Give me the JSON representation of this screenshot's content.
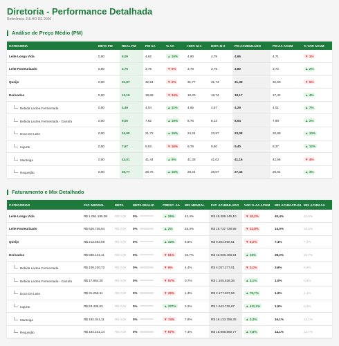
{
  "header": {
    "title": "Diretoria - Performance Detalhada",
    "subtitle": "Referência: JULHO DE 2026"
  },
  "sections": [
    {
      "title": "Análise de Preço Médio (PM)",
      "columns": [
        "CATEGORIA",
        "META PM",
        "REAL PM",
        "PM AA",
        "% AA",
        "HIST. M-1",
        "HIST. M-2",
        "PM ACUMULADO",
        "PM AA ACUM",
        "% VAR ACUM"
      ],
      "trend_columns": [
        4,
        9
      ],
      "rows": [
        {
          "kind": "parent",
          "cells": [
            "Leite Longa Vida",
            "0,00",
            "5,09",
            "4,62",
            "▲ 10%",
            "4,90",
            "4,79",
            "4,66",
            "4,71",
            "▼ 1%"
          ]
        },
        {
          "kind": "parent",
          "cells": [
            "Leite Pasteurizado",
            "0,00",
            "3,76",
            "3,79",
            "▼ 0%",
            "3,79",
            "3,79",
            "3,80",
            "3,72",
            "▲ 2%"
          ]
        },
        {
          "kind": "parent",
          "cells": [
            "Queijo",
            "0,00",
            "31,87",
            "32,54",
            "▼ 2%",
            "31,77",
            "31,74",
            "31,38",
            "32,90",
            "▼ 5%"
          ]
        },
        {
          "kind": "parent",
          "cells": [
            "Derivados",
            "0,00",
            "13,19",
            "19,88",
            "▼ 34%",
            "18,20",
            "18,74",
            "18,17",
            "17,42",
            "▲ 4%"
          ]
        },
        {
          "kind": "child",
          "cells": [
            "Bebida Lactea Fermentada",
            "0,00",
            "4,49",
            "4,04",
            "▲ 11%",
            "4,65",
            "4,57",
            "4,29",
            "4,01",
            "▲ 7%"
          ]
        },
        {
          "kind": "child",
          "cells": [
            "Bebida Lactea Fermentada - Garrafa",
            "0,00",
            "9,05",
            "7,62",
            "▲ 19%",
            "8,76",
            "8,13",
            "8,04",
            "7,90",
            "▲ 2%"
          ]
        },
        {
          "kind": "child",
          "cells": [
            "Doce De Leite",
            "0,00",
            "24,90",
            "21,72",
            "▲ 15%",
            "24,24",
            "23,97",
            "23,08",
            "20,89",
            "▲ 10%"
          ]
        },
        {
          "kind": "child",
          "cells": [
            "Iogurte",
            "0,00",
            "7,97",
            "9,53",
            "▼ 16%",
            "9,78",
            "9,50",
            "9,40",
            "8,37",
            "▲ 12%"
          ]
        },
        {
          "kind": "child",
          "cells": [
            "Manteiga",
            "0,00",
            "44,01",
            "41,44",
            "▲ 6%",
            "41,39",
            "41,02",
            "41,16",
            "42,66",
            "▼ 4%"
          ]
        },
        {
          "kind": "child",
          "cells": [
            "Requeijão",
            "0,00",
            "30,77",
            "26,76",
            "▲ 15%",
            "28,24",
            "28,07",
            "27,45",
            "26,64",
            "▲ 3%"
          ]
        }
      ]
    },
    {
      "title": "Faturamento e Mix Detalhado",
      "columns": [
        "CATEGORIAS",
        "FAT. MENSAL",
        "META",
        "META REALIZ.",
        "CRESC. AA",
        "MIX MENSAL",
        "FAT. ACUMULADO",
        "VAR % AA ACUM",
        "MIX ACUM ATUAL",
        "MIX ACUM AA"
      ],
      "trend_columns": [
        4,
        7
      ],
      "progress_column": 3,
      "rows": [
        {
          "kind": "parent",
          "cells": [
            "Leite Longa Vida",
            "R$ 1.051.195,08",
            "R$ 0,00",
            "0%",
            "▲ 26%",
            "42,4%",
            "R$ 45.389.145,10",
            "▼ 10,2%",
            "40,4%",
            "43,6%"
          ]
        },
        {
          "kind": "parent",
          "cells": [
            "Leite Pasteurizado",
            "R$ 628.735,94",
            "R$ 0,00",
            "0%",
            "▲ 2%",
            "25,3%",
            "R$ 15.737.736,98",
            "▼ 12,8%",
            "14,0%",
            "15,5%"
          ]
        },
        {
          "kind": "parent",
          "cells": [
            "Queijo",
            "R$ 213.592,69",
            "R$ 0,00",
            "0%",
            "▲ 33%",
            "8,6%",
            "R$ 8.304.956,51",
            "▼ 0,2%",
            "7,4%",
            "7,2%"
          ]
        },
        {
          "kind": "parent",
          "cells": [
            "Derivados",
            "R$ 588.131,11",
            "R$ 0,00",
            "0%",
            "▼ 61%",
            "23,7%",
            "R$ 43.006.456,94",
            "▲ 16%",
            "38,2%",
            "33,7%"
          ]
        },
        {
          "kind": "child",
          "cells": [
            "Bebida Lactea Fermentada",
            "R$ 109.100,72",
            "R$ 0,00",
            "0%",
            "▼ 6%",
            "4,4%",
            "R$ 4.037.277,01",
            "▼ 3,1%",
            "3,6%",
            "3,6%"
          ]
        },
        {
          "kind": "child",
          "cells": [
            "Bebida Lactea Fermentada - Garrafa",
            "R$ 17.864,20",
            "R$ 0,00",
            "0%",
            "▼ 57%",
            "0,7%",
            "R$ 1.105.928,38",
            "▲ 3,1%",
            "1,0%",
            "0,8%"
          ]
        },
        {
          "kind": "child",
          "cells": [
            "Doce De Leite",
            "R$ 31.265,41",
            "R$ 0,00",
            "0%",
            "▼ 29%",
            "1,3%",
            "R$ 2.177.307,56",
            "▲ 79,7%",
            "1,9%",
            "1,1%"
          ]
        },
        {
          "kind": "child",
          "cells": [
            "Iogurte",
            "R$ 53.438,53",
            "R$ 0,00",
            "0%",
            "▲ 227%",
            "2,2%",
            "R$ 1.643.726,87",
            "▲ 411,1%",
            "1,5%",
            "0,3%"
          ]
        },
        {
          "kind": "child",
          "cells": [
            "Manteiga",
            "R$ 192.341,11",
            "R$ 0,00",
            "0%",
            "▼ 74%",
            "7,8%",
            "R$ 18.133.356,35",
            "▲ 3,3%",
            "16,1%",
            "16,1%"
          ]
        },
        {
          "kind": "child",
          "cells": [
            "Requeijão",
            "R$ 184.101,14",
            "R$ 0,00",
            "0%",
            "▼ 67%",
            "7,4%",
            "R$ 15.908.860,77",
            "▲ 7,8%",
            "14,1%",
            "12,7%"
          ]
        }
      ]
    }
  ]
}
